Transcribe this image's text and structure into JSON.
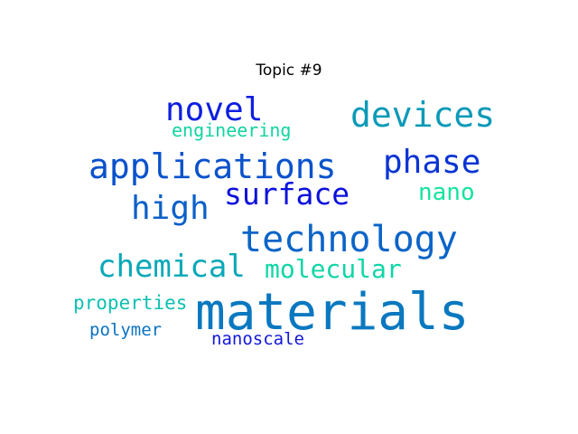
{
  "title": "Topic #9",
  "words": [
    {
      "text": "materials",
      "color": "#0a78c0"
    },
    {
      "text": "technology",
      "color": "#0b64c8"
    },
    {
      "text": "applications",
      "color": "#0a52cc"
    },
    {
      "text": "devices",
      "color": "#0a9ab8"
    },
    {
      "text": "phase",
      "color": "#0a34d4"
    },
    {
      "text": "surface",
      "color": "#0b10dc"
    },
    {
      "text": "high",
      "color": "#0a60c8"
    },
    {
      "text": "novel",
      "color": "#0d1ee0"
    },
    {
      "text": "chemical",
      "color": "#08a8b8"
    },
    {
      "text": "molecular",
      "color": "#0fd6a6"
    },
    {
      "text": "nano",
      "color": "#13e49e"
    },
    {
      "text": "engineering",
      "color": "#12d4a0"
    },
    {
      "text": "properties",
      "color": "#0ec0b0"
    },
    {
      "text": "polymer",
      "color": "#0a72c4"
    },
    {
      "text": "nanoscale",
      "color": "#1318d8"
    }
  ]
}
